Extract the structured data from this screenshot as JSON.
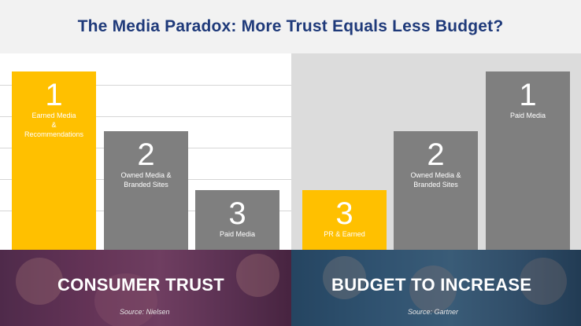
{
  "title": "The Media Paradox: More Trust Equals Less Budget?",
  "colors": {
    "highlight": "#ffc000",
    "neutral": "#7f7f7f",
    "title": "#1f3a7a"
  },
  "chart_data": [
    {
      "type": "bar",
      "caption": "CONSUMER TRUST",
      "source": "Source: Nielsen",
      "categories": [
        "Earned Media & Recommendations",
        "Owned Media & Branded Sites",
        "Paid Media"
      ],
      "ranks": [
        "1",
        "2",
        "3"
      ],
      "label_lines": [
        [
          "Earned Media",
          "&",
          "Recommendations"
        ],
        [
          "Owned Media &",
          "Branded Sites"
        ],
        [
          "Paid Media"
        ]
      ],
      "values": [
        3,
        2,
        1
      ],
      "highlight": [
        true,
        false,
        false
      ],
      "ylim": [
        0,
        3
      ],
      "grid": true
    },
    {
      "type": "bar",
      "caption": "BUDGET TO INCREASE",
      "source": "Source: Gartner",
      "categories": [
        "PR & Earned",
        "Owned Media & Branded Sites",
        "Paid Media"
      ],
      "ranks": [
        "3",
        "2",
        "1"
      ],
      "label_lines": [
        [
          "PR & Earned"
        ],
        [
          "Owned Media &",
          "Branded Sites"
        ],
        [
          "Paid Media"
        ]
      ],
      "values": [
        1,
        2,
        3
      ],
      "highlight": [
        true,
        false,
        false
      ],
      "ylim": [
        0,
        3
      ],
      "grid": false
    }
  ]
}
